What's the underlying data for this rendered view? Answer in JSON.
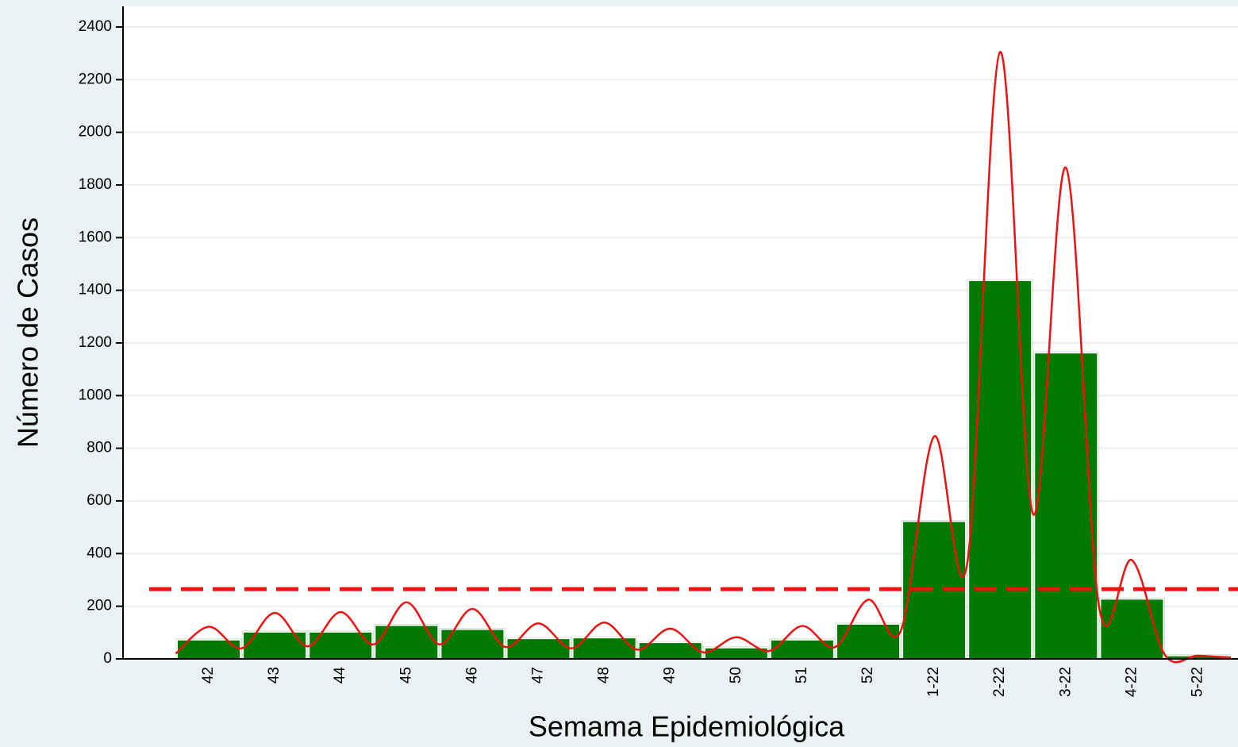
{
  "chart_data": {
    "type": "bar",
    "x_label": "Semama Epidemiológica",
    "y_label": "Número de Casos",
    "categories": [
      "42",
      "43",
      "44",
      "45",
      "46",
      "47",
      "48",
      "49",
      "50",
      "51",
      "52",
      "1-22",
      "2-22",
      "3-22",
      "4-22",
      "5-22"
    ],
    "values": [
      70,
      100,
      100,
      125,
      110,
      75,
      78,
      60,
      40,
      70,
      130,
      520,
      1435,
      1160,
      225,
      10
    ],
    "color": "#007a00",
    "curve": {
      "color": "#ee1111",
      "x": [
        -0.5,
        0,
        0.5,
        1,
        1.5,
        2,
        2.5,
        3,
        3.5,
        4,
        4.5,
        5,
        5.5,
        6,
        6.5,
        7,
        7.5,
        8,
        8.5,
        9,
        9.5,
        10,
        10.5,
        11,
        11.5,
        12,
        12.5,
        13,
        13.5,
        14,
        14.5,
        15,
        15.5
      ],
      "values": [
        20,
        122,
        40,
        175,
        48,
        178,
        55,
        215,
        55,
        190,
        45,
        135,
        40,
        138,
        35,
        115,
        25,
        82,
        30,
        125,
        45,
        225,
        110,
        845,
        360,
        2305,
        550,
        1865,
        200,
        375,
        15,
        12,
        5
      ]
    },
    "threshold": {
      "value": 265,
      "color": "#ee1111"
    },
    "ylim": [
      0,
      2400
    ],
    "yticks": [
      0,
      200,
      400,
      600,
      800,
      1000,
      1200,
      1400,
      1600,
      1800,
      2000,
      2200,
      2400
    ],
    "grid": true
  }
}
